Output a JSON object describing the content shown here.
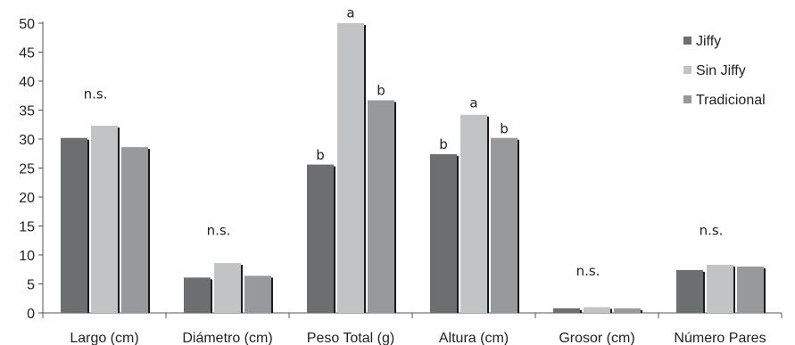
{
  "chart_data": {
    "type": "bar",
    "title": "",
    "xlabel": "",
    "ylabel": "",
    "ylim": [
      0,
      50
    ],
    "yticks": [
      0,
      5,
      10,
      15,
      20,
      25,
      30,
      35,
      40,
      45,
      50
    ],
    "grid": false,
    "legend_position": "right",
    "categories": [
      "Largo (cm)",
      "Diámetro (cm)",
      "Peso Total (g)",
      "Altura (cm)",
      "Grosor (cm)",
      "Número Pares"
    ],
    "series": [
      {
        "name": "Jiffy",
        "color": "#6d6e70",
        "values": [
          30.2,
          6.1,
          25.6,
          27.4,
          0.8,
          7.4
        ]
      },
      {
        "name": "Sin Jiffy",
        "color": "#c2c3c5",
        "values": [
          32.3,
          8.6,
          50.0,
          34.2,
          1.0,
          8.3
        ]
      },
      {
        "name": "Tradicional",
        "color": "#98999b",
        "values": [
          28.6,
          6.4,
          36.7,
          30.2,
          0.8,
          8.0
        ]
      }
    ],
    "annotations": [
      {
        "text": "n.s.",
        "category": 0,
        "y": 37
      },
      {
        "text": "n.s.",
        "category": 1,
        "y": 13.5
      },
      {
        "text": "b",
        "category": 2,
        "series": 0,
        "y": 26.5
      },
      {
        "text": "a",
        "category": 2,
        "series": 1,
        "y": 51
      },
      {
        "text": "b",
        "category": 2,
        "series": 2,
        "y": 37.6
      },
      {
        "text": "b",
        "category": 3,
        "series": 0,
        "y": 28.3
      },
      {
        "text": "a",
        "category": 3,
        "series": 1,
        "y": 35.5
      },
      {
        "text": "b",
        "category": 3,
        "series": 2,
        "y": 31
      },
      {
        "text": "n.s.",
        "category": 4,
        "y": 6.5
      },
      {
        "text": "n.s.",
        "category": 5,
        "y": 13.5
      }
    ]
  }
}
